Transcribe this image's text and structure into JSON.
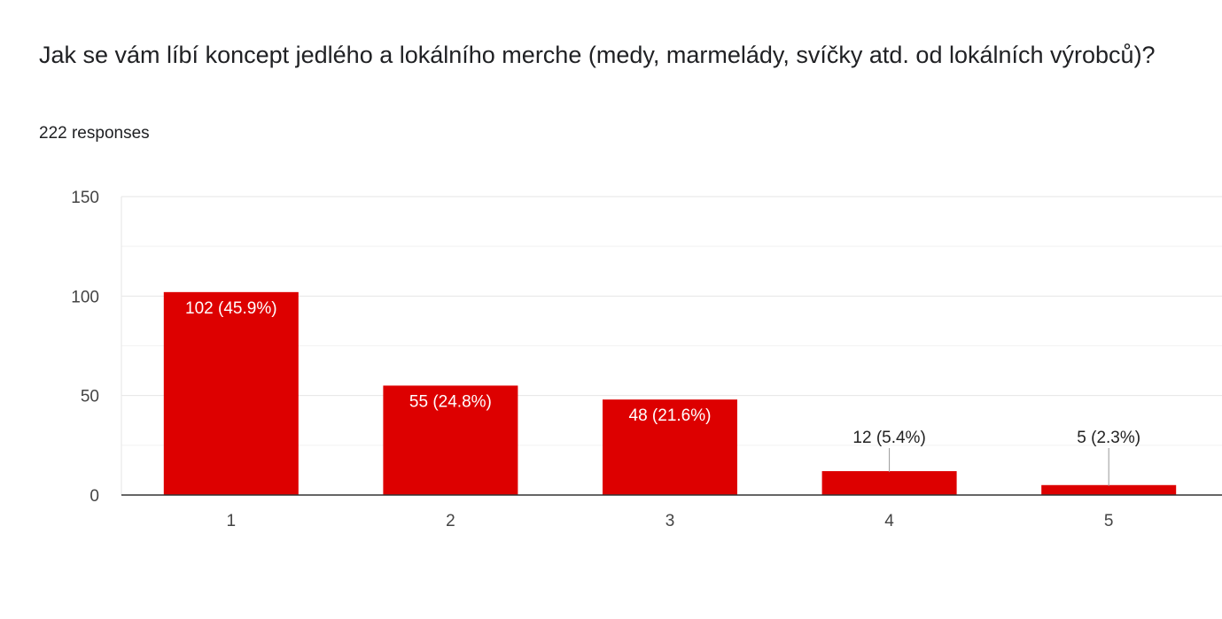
{
  "question": {
    "title": "Jak se vám líbí koncept jedlého a lokálního merche (medy, marmelády, svíčky atd. od lokálních výrobců)?",
    "response_count": "222 responses"
  },
  "colors": {
    "bar": "#dd0000",
    "gridline": "#e6e6e6",
    "minor_gridline": "#f2f2f2",
    "axis": "#333333",
    "leader_line": "#999999"
  },
  "chart_data": {
    "type": "bar",
    "title": "",
    "xlabel": "",
    "ylabel": "",
    "categories": [
      "1",
      "2",
      "3",
      "4",
      "5"
    ],
    "values": [
      102,
      55,
      48,
      12,
      5
    ],
    "data_labels": [
      "102 (45.9%)",
      "55 (24.8%)",
      "48 (21.6%)",
      "12 (5.4%)",
      "5 (2.3%)"
    ],
    "ylim": [
      0,
      150
    ],
    "yticks": [
      0,
      50,
      100,
      150
    ],
    "grid": true,
    "legend": "none"
  }
}
